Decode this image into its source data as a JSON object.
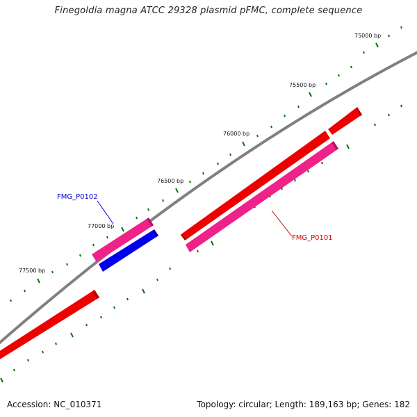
{
  "title": "Finegoldia magna ATCC 29328 plasmid pFMC, complete sequence",
  "footer": {
    "accession": "Accession: NC_010371",
    "summary": "Topology: circular; Length: 189,163 bp; Genes: 182"
  },
  "tick_labels": [
    "75000 bp",
    "75500 bp",
    "76000 bp",
    "76500 bp",
    "77000 bp",
    "77500 bp"
  ],
  "genes": [
    {
      "name": "FMG_P0102",
      "color": "#0000cc"
    },
    {
      "name": "FMG_P0101",
      "color": "#cc0000"
    }
  ],
  "colors": {
    "backbone": "#808080",
    "tick": "#007700",
    "forward_gene": "#ee0000",
    "reverse_gene": "#ee2288",
    "highlight_gene": "#0000ee"
  }
}
